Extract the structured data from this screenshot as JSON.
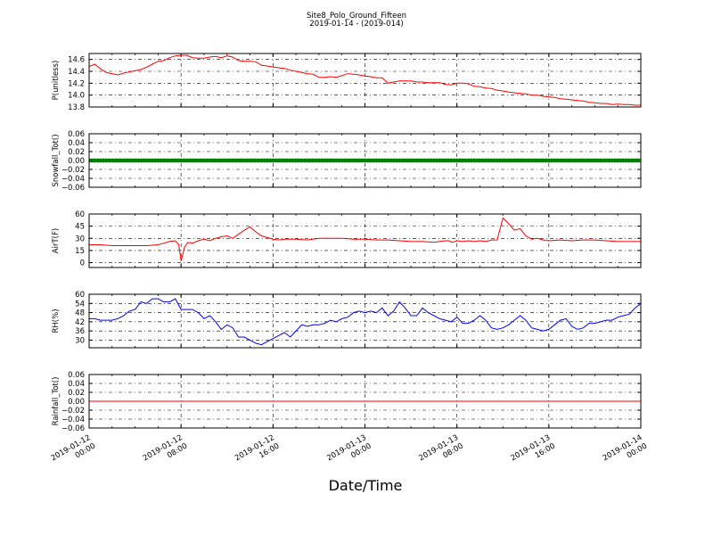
{
  "title": "Site8_Polo_Ground_Fifteen",
  "subtitle": "2019-01-14 - (2019-014)",
  "xlabel": "Date/Time",
  "chart_data": {
    "type": "line",
    "x_ticks": [
      {
        "line1": "2019-01-12",
        "line2": "00:00"
      },
      {
        "line1": "2019-01-12",
        "line2": "08:00"
      },
      {
        "line1": "2019-01-12",
        "line2": "16:00"
      },
      {
        "line1": "2019-01-13",
        "line2": "00:00"
      },
      {
        "line1": "2019-01-13",
        "line2": "08:00"
      },
      {
        "line1": "2019-01-13",
        "line2": "16:00"
      },
      {
        "line1": "2019-01-14",
        "line2": "00:00"
      }
    ],
    "x_range_hours": [
      0,
      48
    ],
    "grid": true,
    "panels": [
      {
        "ylabel": "P(unitless)",
        "ylim": [
          13.8,
          14.7
        ],
        "yticks": [
          "13.8",
          "14.0",
          "14.2",
          "14.4",
          "14.6"
        ],
        "series": [
          {
            "color": "#ff0000",
            "style": "line",
            "x": [
              0,
              0.5,
              1,
              1.5,
              2,
              2.5,
              3,
              3.5,
              4,
              4.5,
              5,
              5.5,
              6,
              6.5,
              7,
              7.5,
              8,
              8.5,
              9,
              9.5,
              10,
              10.5,
              11,
              11.5,
              12,
              12.5,
              13,
              13.5,
              14,
              14.5,
              15,
              15.5,
              16,
              16.5,
              17,
              17.5,
              18,
              18.5,
              19,
              19.5,
              20,
              20.5,
              21,
              21.5,
              22,
              22.5,
              23,
              23.5,
              24,
              24.5,
              25,
              25.5,
              26,
              26.5,
              27,
              27.5,
              28,
              28.5,
              29,
              29.5,
              30,
              30.5,
              31,
              31.5,
              32,
              32.5,
              33,
              33.5,
              34,
              34.5,
              35,
              35.5,
              36,
              36.5,
              37,
              37.5,
              38,
              38.5,
              39,
              39.5,
              40,
              40.5,
              41,
              41.5,
              42,
              42.5,
              43,
              43.5,
              44,
              44.5,
              45,
              45.5,
              46,
              46.5,
              47,
              47.5,
              48
            ],
            "y": [
              14.48,
              14.52,
              14.44,
              14.38,
              14.36,
              14.34,
              14.37,
              14.39,
              14.41,
              14.43,
              14.47,
              14.52,
              14.57,
              14.58,
              14.63,
              14.66,
              14.67,
              14.67,
              14.63,
              14.62,
              14.62,
              14.64,
              14.65,
              14.63,
              14.66,
              14.64,
              14.58,
              14.57,
              14.57,
              14.56,
              14.5,
              14.49,
              14.47,
              14.46,
              14.45,
              14.42,
              14.4,
              14.38,
              14.36,
              14.35,
              14.3,
              14.3,
              14.31,
              14.3,
              14.33,
              14.36,
              14.35,
              14.34,
              14.32,
              14.31,
              14.29,
              14.29,
              14.2,
              14.22,
              14.24,
              14.24,
              14.24,
              14.22,
              14.22,
              14.21,
              14.21,
              14.21,
              14.18,
              14.17,
              14.2,
              14.2,
              14.19,
              14.15,
              14.14,
              14.12,
              14.11,
              14.08,
              14.07,
              14.05,
              14.04,
              14.03,
              14.02,
              14.0,
              14.0,
              13.98,
              13.97,
              13.96,
              13.94,
              13.93,
              13.92,
              13.91,
              13.9,
              13.88,
              13.87,
              13.86,
              13.86,
              13.84,
              13.85,
              13.84,
              13.84,
              13.83,
              13.83
            ]
          }
        ]
      },
      {
        "ylabel": "Snowfall_Tot()",
        "ylim": [
          -0.06,
          0.06
        ],
        "yticks": [
          "−0.06",
          "−0.04",
          "−0.02",
          "0.00",
          "0.02",
          "0.04",
          "0.06"
        ],
        "series": [
          {
            "color": "#008000",
            "style": "markers",
            "value": 0.0
          }
        ]
      },
      {
        "ylabel": "AirT(F)",
        "ylim": [
          -6,
          60
        ],
        "yticks": [
          "0",
          "15",
          "30",
          "45",
          "60"
        ],
        "series": [
          {
            "color": "#ff0000",
            "style": "line",
            "x": [
              0,
              1,
              2,
              3,
              4,
              5,
              6,
              6.5,
              7,
              7.5,
              7.8,
              8,
              8.3,
              8.6,
              9,
              9.5,
              10,
              10.5,
              11,
              11.5,
              12,
              12.5,
              13,
              13.5,
              14,
              14.5,
              15,
              15.5,
              16,
              16.5,
              17,
              18,
              19,
              20,
              21,
              22,
              23,
              24,
              25,
              26,
              27,
              28,
              29,
              30,
              30.5,
              31,
              31.3,
              31.6,
              32,
              32.5,
              33,
              33.5,
              34,
              34.5,
              35,
              35.5,
              36,
              36.5,
              37,
              37.5,
              38,
              38.5,
              39,
              39.5,
              40,
              41,
              42,
              43,
              44,
              45,
              46,
              47,
              48
            ],
            "y": [
              22,
              22,
              21,
              21,
              21,
              21,
              22,
              24,
              26,
              27,
              22,
              2,
              19,
              25,
              24,
              27,
              29,
              27,
              30,
              32,
              33,
              30,
              35,
              40,
              44,
              38,
              33,
              31,
              29,
              28,
              29,
              29,
              28,
              30,
              30,
              30,
              29,
              29,
              28,
              28,
              27,
              26,
              26,
              25,
              26,
              27,
              27,
              25,
              27,
              26,
              27,
              26,
              27,
              26,
              28,
              28,
              55,
              48,
              40,
              42,
              33,
              29,
              30,
              28,
              27,
              28,
              27,
              28,
              28,
              27,
              26,
              26,
              26
            ]
          }
        ]
      },
      {
        "ylabel": "RH(%)",
        "ylim": [
          25,
          60
        ],
        "yticks": [
          "30",
          "36",
          "42",
          "48",
          "54",
          "60"
        ],
        "series": [
          {
            "color": "#0000ff",
            "style": "line",
            "x": [
              0,
              0.5,
              1,
              1.5,
              2,
              2.5,
              3,
              3.5,
              4,
              4.5,
              5,
              5.5,
              6,
              6.5,
              7,
              7.5,
              8,
              8.5,
              9,
              9.5,
              10,
              10.5,
              11,
              11.5,
              12,
              12.5,
              13,
              13.5,
              14,
              14.5,
              15,
              15.5,
              16,
              16.5,
              17,
              17.5,
              18,
              18.5,
              19,
              19.5,
              20,
              20.5,
              21,
              21.5,
              22,
              22.5,
              23,
              23.5,
              24,
              24.5,
              25,
              25.5,
              26,
              26.5,
              27,
              27.5,
              28,
              28.5,
              29,
              29.5,
              30,
              30.5,
              31,
              31.5,
              32,
              32.5,
              33,
              33.5,
              34,
              34.5,
              35,
              35.5,
              36,
              36.5,
              37,
              37.5,
              38,
              38.5,
              39,
              39.5,
              40,
              40.5,
              41,
              41.5,
              42,
              42.5,
              43,
              43.5,
              44,
              44.5,
              45,
              45.5,
              46,
              46.5,
              47,
              47.5,
              48
            ],
            "y": [
              44,
              44,
              43,
              43,
              43,
              44,
              46,
              49,
              50,
              55,
              54,
              57,
              57,
              55,
              55,
              57,
              50,
              50,
              50,
              48,
              44,
              46,
              42,
              37,
              40,
              38,
              32,
              32,
              30,
              28,
              27,
              29,
              31,
              33,
              35,
              32,
              36,
              40,
              39,
              40,
              40,
              41,
              43,
              42,
              44,
              45,
              48,
              49,
              48,
              49,
              48,
              51,
              46,
              49,
              55,
              51,
              46,
              46,
              51,
              48,
              46,
              44,
              43,
              42,
              45,
              41,
              41,
              43,
              46,
              43,
              38,
              37,
              38,
              40,
              43,
              46,
              43,
              38,
              37,
              36,
              37,
              40,
              43,
              44,
              39,
              37,
              38,
              41,
              41,
              42,
              43,
              43,
              45,
              46,
              47,
              51,
              54
            ]
          }
        ]
      },
      {
        "ylabel": "Rainfall_Tot()",
        "ylim": [
          -0.06,
          0.06
        ],
        "yticks": [
          "−0.06",
          "−0.04",
          "−0.02",
          "0.00",
          "0.02",
          "0.04",
          "0.06"
        ],
        "series": [
          {
            "color": "#ff0000",
            "style": "line",
            "value": 0.0
          }
        ]
      }
    ]
  }
}
